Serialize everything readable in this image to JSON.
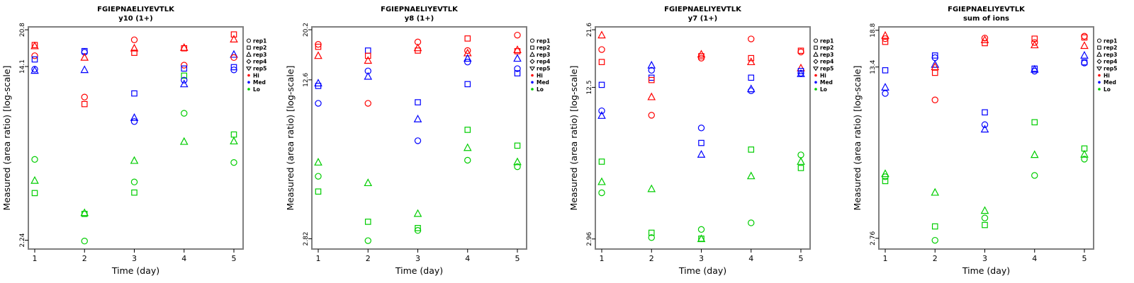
{
  "figure": {
    "x_axis_label": "Time (day)",
    "y_axis_label": "Measured (area ratio) [log-scale]",
    "x_ticks": [
      "1",
      "2",
      "3",
      "4",
      "5"
    ],
    "legend": {
      "reps": [
        {
          "label": "rep1",
          "marker": "circle"
        },
        {
          "label": "rep2",
          "marker": "square"
        },
        {
          "label": "rep3",
          "marker": "triangle"
        },
        {
          "label": "rep4",
          "marker": "diamond"
        },
        {
          "label": "rep5",
          "marker": "triangle-down"
        }
      ],
      "levels": [
        {
          "label": "Hi",
          "color": "#FF0000"
        },
        {
          "label": "Med",
          "color": "#0000FF"
        },
        {
          "label": "Lo",
          "color": "#00CD00"
        }
      ]
    },
    "colors": {
      "Hi": "#FF0000",
      "Med": "#0000FF",
      "Lo": "#00CD00",
      "box_border": "#7F7F7F"
    }
  },
  "chart_data": [
    {
      "type": "scatter",
      "title": "FGIEPNAELIYEVTLK",
      "subtitle": "y10 (1+)",
      "xlabel": "Time (day)",
      "ylabel": "Measured (area ratio) [log-scale]",
      "x_ticks": [
        1,
        2,
        3,
        4,
        5
      ],
      "y_scale": "log",
      "ylim": [
        2.04,
        21.45
      ],
      "y_ticks": [
        {
          "value": 2.24,
          "label": "2.24"
        },
        {
          "value": 14.1,
          "label": "14.1"
        },
        {
          "value": 20.8,
          "label": "20.8"
        }
      ],
      "points_format": [
        "day",
        "level",
        "marker",
        "value"
      ],
      "points": [
        [
          1,
          "Hi",
          "square",
          17.7
        ],
        [
          1,
          "Hi",
          "triangle",
          17.5
        ],
        [
          1,
          "Hi",
          "circle",
          15.8
        ],
        [
          1,
          "Med",
          "square",
          15.2
        ],
        [
          1,
          "Med",
          "circle",
          13.7
        ],
        [
          1,
          "Med",
          "triangle",
          13.5
        ],
        [
          1,
          "Lo",
          "circle",
          5.27
        ],
        [
          1,
          "Lo",
          "triangle",
          4.21
        ],
        [
          1,
          "Lo",
          "square",
          3.69
        ],
        [
          2,
          "Med",
          "square",
          16.6
        ],
        [
          2,
          "Med",
          "circle",
          16.4
        ],
        [
          2,
          "Hi",
          "triangle",
          15.5
        ],
        [
          2,
          "Med",
          "triangle",
          13.6
        ],
        [
          2,
          "Hi",
          "circle",
          10.2
        ],
        [
          2,
          "Hi",
          "square",
          9.47
        ],
        [
          2,
          "Lo",
          "triangle",
          2.99
        ],
        [
          2,
          "Lo",
          "square",
          2.96
        ],
        [
          2,
          "Lo",
          "circle",
          2.22
        ],
        [
          3,
          "Hi",
          "circle",
          18.7
        ],
        [
          3,
          "Hi",
          "triangle",
          17.1
        ],
        [
          3,
          "Hi",
          "square",
          16.3
        ],
        [
          3,
          "Med",
          "square",
          10.6
        ],
        [
          3,
          "Med",
          "triangle",
          8.19
        ],
        [
          3,
          "Med",
          "circle",
          7.87
        ],
        [
          3,
          "Lo",
          "triangle",
          5.2
        ],
        [
          3,
          "Lo",
          "circle",
          4.15
        ],
        [
          3,
          "Lo",
          "square",
          3.71
        ],
        [
          4,
          "Hi",
          "triangle",
          17.2
        ],
        [
          4,
          "Hi",
          "square",
          17.1
        ],
        [
          4,
          "Hi",
          "circle",
          14.3
        ],
        [
          4,
          "Med",
          "square",
          13.8
        ],
        [
          4,
          "Lo",
          "square",
          12.8
        ],
        [
          4,
          "Med",
          "circle",
          12.2
        ],
        [
          4,
          "Med",
          "triangle",
          11.7
        ],
        [
          4,
          "Lo",
          "circle",
          8.59
        ],
        [
          4,
          "Lo",
          "triangle",
          6.36
        ],
        [
          5,
          "Hi",
          "square",
          19.8
        ],
        [
          5,
          "Hi",
          "triangle",
          18.8
        ],
        [
          5,
          "Med",
          "triangle",
          16.0
        ],
        [
          5,
          "Hi",
          "circle",
          15.5
        ],
        [
          5,
          "Med",
          "square",
          14.0
        ],
        [
          5,
          "Med",
          "circle",
          13.6
        ],
        [
          5,
          "Lo",
          "square",
          6.86
        ],
        [
          5,
          "Lo",
          "triangle",
          6.39
        ],
        [
          5,
          "Lo",
          "circle",
          5.1
        ]
      ]
    },
    {
      "type": "scatter",
      "title": "FGIEPNAELIYEVTLK",
      "subtitle": "y8 (1+)",
      "xlabel": "Time (day)",
      "ylabel": "Measured (area ratio) [log-scale]",
      "x_ticks": [
        1,
        2,
        3,
        4,
        5
      ],
      "y_scale": "log",
      "ylim": [
        2.56,
        20.75
      ],
      "y_ticks": [
        {
          "value": 2.82,
          "label": "2.82"
        },
        {
          "value": 12.6,
          "label": "12.6"
        },
        {
          "value": 20.2,
          "label": "20.2"
        }
      ],
      "points_format": [
        "day",
        "level",
        "marker",
        "value"
      ],
      "points": [
        [
          1,
          "Hi",
          "circle",
          17.6
        ],
        [
          1,
          "Hi",
          "square",
          17.2
        ],
        [
          1,
          "Hi",
          "triangle",
          15.8
        ],
        [
          1,
          "Med",
          "triangle",
          12.2
        ],
        [
          1,
          "Med",
          "square",
          11.9
        ],
        [
          1,
          "Med",
          "circle",
          10.1
        ],
        [
          1,
          "Lo",
          "triangle",
          5.79
        ],
        [
          1,
          "Lo",
          "circle",
          5.08
        ],
        [
          1,
          "Lo",
          "square",
          4.4
        ],
        [
          2,
          "Med",
          "square",
          16.6
        ],
        [
          2,
          "Hi",
          "square",
          15.8
        ],
        [
          2,
          "Hi",
          "triangle",
          15.1
        ],
        [
          2,
          "Med",
          "circle",
          13.7
        ],
        [
          2,
          "Med",
          "triangle",
          13.0
        ],
        [
          2,
          "Hi",
          "circle",
          10.1
        ],
        [
          2,
          "Lo",
          "triangle",
          4.77
        ],
        [
          2,
          "Lo",
          "square",
          3.31
        ],
        [
          2,
          "Lo",
          "circle",
          2.77
        ],
        [
          3,
          "Hi",
          "circle",
          18.0
        ],
        [
          3,
          "Hi",
          "triangle",
          17.0
        ],
        [
          3,
          "Hi",
          "square",
          16.6
        ],
        [
          3,
          "Med",
          "square",
          10.2
        ],
        [
          3,
          "Med",
          "triangle",
          8.7
        ],
        [
          3,
          "Med",
          "circle",
          7.1
        ],
        [
          3,
          "Lo",
          "triangle",
          3.57
        ],
        [
          3,
          "Lo",
          "square",
          3.12
        ],
        [
          3,
          "Lo",
          "circle",
          3.05
        ],
        [
          4,
          "Hi",
          "square",
          18.6
        ],
        [
          4,
          "Hi",
          "circle",
          16.6
        ],
        [
          4,
          "Hi",
          "triangle",
          16.2
        ],
        [
          4,
          "Med",
          "triangle",
          15.4
        ],
        [
          4,
          "Med",
          "circle",
          14.9
        ],
        [
          4,
          "Med",
          "square",
          12.1
        ],
        [
          4,
          "Lo",
          "square",
          7.87
        ],
        [
          4,
          "Lo",
          "triangle",
          6.64
        ],
        [
          4,
          "Lo",
          "circle",
          5.91
        ],
        [
          5,
          "Hi",
          "circle",
          19.2
        ],
        [
          5,
          "Hi",
          "triangle",
          16.7
        ],
        [
          5,
          "Hi",
          "square",
          16.5
        ],
        [
          5,
          "Med",
          "triangle",
          15.4
        ],
        [
          5,
          "Med",
          "circle",
          14.0
        ],
        [
          5,
          "Med",
          "square",
          13.4
        ],
        [
          5,
          "Lo",
          "square",
          6.78
        ],
        [
          5,
          "Lo",
          "triangle",
          5.81
        ],
        [
          5,
          "Lo",
          "circle",
          5.56
        ]
      ]
    },
    {
      "type": "scatter",
      "title": "FGIEPNAELIYEVTLK",
      "subtitle": "y7 (1+)",
      "xlabel": "Time (day)",
      "ylabel": "Measured (area ratio) [log-scale]",
      "x_ticks": [
        1,
        2,
        3,
        4,
        5
      ],
      "y_scale": "log",
      "ylim": [
        2.69,
        22.2
      ],
      "y_ticks": [
        {
          "value": 2.96,
          "label": "2.96"
        },
        {
          "value": 12.5,
          "label": "12.5"
        },
        {
          "value": 21.6,
          "label": "21.6"
        }
      ],
      "points_format": [
        "day",
        "level",
        "marker",
        "value"
      ],
      "points": [
        [
          1,
          "Hi",
          "triangle",
          20.5
        ],
        [
          1,
          "Hi",
          "circle",
          17.9
        ],
        [
          1,
          "Hi",
          "square",
          15.9
        ],
        [
          1,
          "Med",
          "square",
          12.8
        ],
        [
          1,
          "Med",
          "circle",
          10.0
        ],
        [
          1,
          "Med",
          "triangle",
          9.55
        ],
        [
          1,
          "Lo",
          "square",
          6.17
        ],
        [
          1,
          "Lo",
          "triangle",
          5.09
        ],
        [
          1,
          "Lo",
          "circle",
          4.59
        ],
        [
          2,
          "Med",
          "triangle",
          15.4
        ],
        [
          2,
          "Med",
          "circle",
          14.7
        ],
        [
          2,
          "Med",
          "square",
          13.7
        ],
        [
          2,
          "Hi",
          "square",
          13.4
        ],
        [
          2,
          "Hi",
          "triangle",
          11.4
        ],
        [
          2,
          "Hi",
          "circle",
          9.59
        ],
        [
          2,
          "Lo",
          "triangle",
          4.76
        ],
        [
          2,
          "Lo",
          "square",
          3.14
        ],
        [
          2,
          "Lo",
          "circle",
          3.0
        ],
        [
          3,
          "Hi",
          "triangle",
          17.1
        ],
        [
          3,
          "Hi",
          "square",
          16.8
        ],
        [
          3,
          "Hi",
          "circle",
          16.5
        ],
        [
          3,
          "Med",
          "circle",
          8.5
        ],
        [
          3,
          "Med",
          "square",
          7.37
        ],
        [
          3,
          "Med",
          "triangle",
          6.6
        ],
        [
          3,
          "Lo",
          "circle",
          3.24
        ],
        [
          3,
          "Lo",
          "square",
          2.97
        ],
        [
          3,
          "Lo",
          "triangle",
          2.96
        ],
        [
          4,
          "Hi",
          "circle",
          19.8
        ],
        [
          4,
          "Hi",
          "square",
          16.5
        ],
        [
          4,
          "Hi",
          "triangle",
          15.9
        ],
        [
          4,
          "Med",
          "square",
          13.7
        ],
        [
          4,
          "Med",
          "triangle",
          12.3
        ],
        [
          4,
          "Med",
          "circle",
          12.1
        ],
        [
          4,
          "Lo",
          "square",
          6.92
        ],
        [
          4,
          "Lo",
          "triangle",
          5.38
        ],
        [
          4,
          "Lo",
          "circle",
          3.45
        ],
        [
          5,
          "Hi",
          "square",
          17.7
        ],
        [
          5,
          "Hi",
          "circle",
          17.5
        ],
        [
          5,
          "Hi",
          "triangle",
          15.0
        ],
        [
          5,
          "Med",
          "square",
          14.6
        ],
        [
          5,
          "Med",
          "circle",
          14.3
        ],
        [
          5,
          "Med",
          "triangle",
          14.2
        ],
        [
          5,
          "Lo",
          "circle",
          6.58
        ],
        [
          5,
          "Lo",
          "triangle",
          6.17
        ],
        [
          5,
          "Lo",
          "square",
          5.81
        ]
      ]
    },
    {
      "type": "scatter",
      "title": "FGIEPNAELIYEVTLK",
      "subtitle": "sum of ions",
      "xlabel": "Time (day)",
      "ylabel": "Measured (area ratio) [log-scale]",
      "x_ticks": [
        1,
        2,
        3,
        4,
        5
      ],
      "y_scale": "log",
      "ylim": [
        2.5,
        19.4
      ],
      "y_ticks": [
        {
          "value": 2.76,
          "label": "2.76"
        },
        {
          "value": 13.4,
          "label": "13.4"
        },
        {
          "value": 18.8,
          "label": "18.8"
        }
      ],
      "points_format": [
        "day",
        "level",
        "marker",
        "value"
      ],
      "points": [
        [
          1,
          "Hi",
          "triangle",
          17.9
        ],
        [
          1,
          "Hi",
          "circle",
          17.4
        ],
        [
          1,
          "Hi",
          "square",
          16.9
        ],
        [
          1,
          "Med",
          "square",
          13.0
        ],
        [
          1,
          "Med",
          "triangle",
          11.1
        ],
        [
          1,
          "Med",
          "circle",
          10.5
        ],
        [
          1,
          "Lo",
          "triangle",
          5.0
        ],
        [
          1,
          "Lo",
          "circle",
          4.87
        ],
        [
          1,
          "Lo",
          "square",
          4.68
        ],
        [
          2,
          "Med",
          "square",
          14.9
        ],
        [
          2,
          "Med",
          "circle",
          14.6
        ],
        [
          2,
          "Med",
          "triangle",
          13.7
        ],
        [
          2,
          "Hi",
          "triangle",
          13.4
        ],
        [
          2,
          "Hi",
          "square",
          12.7
        ],
        [
          2,
          "Hi",
          "circle",
          9.89
        ],
        [
          2,
          "Lo",
          "triangle",
          4.21
        ],
        [
          2,
          "Lo",
          "square",
          3.08
        ],
        [
          2,
          "Lo",
          "circle",
          2.71
        ],
        [
          3,
          "Hi",
          "circle",
          17.5
        ],
        [
          3,
          "Hi",
          "triangle",
          17.2
        ],
        [
          3,
          "Hi",
          "square",
          16.7
        ],
        [
          3,
          "Med",
          "square",
          8.82
        ],
        [
          3,
          "Med",
          "circle",
          7.87
        ],
        [
          3,
          "Med",
          "triangle",
          7.54
        ],
        [
          3,
          "Lo",
          "triangle",
          3.56
        ],
        [
          3,
          "Lo",
          "circle",
          3.33
        ],
        [
          3,
          "Lo",
          "square",
          3.12
        ],
        [
          4,
          "Hi",
          "square",
          17.4
        ],
        [
          4,
          "Hi",
          "circle",
          16.8
        ],
        [
          4,
          "Hi",
          "triangle",
          16.4
        ],
        [
          4,
          "Med",
          "square",
          13.2
        ],
        [
          4,
          "Med",
          "triangle",
          13.1
        ],
        [
          4,
          "Med",
          "circle",
          12.9
        ],
        [
          4,
          "Lo",
          "square",
          8.05
        ],
        [
          4,
          "Lo",
          "triangle",
          5.96
        ],
        [
          4,
          "Lo",
          "circle",
          4.93
        ],
        [
          5,
          "Hi",
          "circle",
          17.8
        ],
        [
          5,
          "Hi",
          "square",
          17.6
        ],
        [
          5,
          "Hi",
          "triangle",
          16.3
        ],
        [
          5,
          "Med",
          "triangle",
          14.9
        ],
        [
          5,
          "Med",
          "square",
          14.0
        ],
        [
          5,
          "Med",
          "circle",
          13.9
        ],
        [
          5,
          "Lo",
          "square",
          6.32
        ],
        [
          5,
          "Lo",
          "triangle",
          5.98
        ],
        [
          5,
          "Lo",
          "circle",
          5.73
        ]
      ]
    }
  ]
}
